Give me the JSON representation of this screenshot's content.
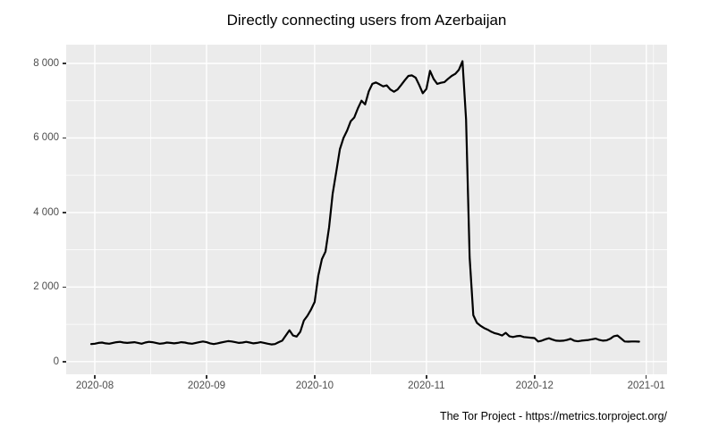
{
  "title": "Directly connecting users from Azerbaijan",
  "footer": "The Tor Project - https://metrics.torproject.org/",
  "colors": {
    "background": "#FFFFFF",
    "panel_background": "#EBEBEB",
    "gridline": "#FFFFFF",
    "data_line": "#000000",
    "tick_label": "#4D4D4D",
    "tick_mark": "#333333",
    "title_text": "#000000"
  },
  "chart_data": {
    "type": "line",
    "title": "Directly connecting users from Azerbaijan",
    "xlabel": "",
    "ylabel": "",
    "legend_position": "none",
    "grid": true,
    "ylim": [
      0,
      8500
    ],
    "y_tick_values": [
      0,
      2000,
      4000,
      6000,
      8000
    ],
    "y_tick_labels": [
      "0",
      "2 000",
      "4 000",
      "6 000",
      "8 000"
    ],
    "y_minor_values": [
      1000,
      3000,
      5000,
      7000
    ],
    "x_tick_labels": [
      "2020-08",
      "2020-09",
      "2020-10",
      "2020-11",
      "2020-12",
      "2021-01"
    ],
    "x_tick_day_offsets": [
      0,
      31,
      61,
      92,
      122,
      153
    ],
    "x_minor_day_offsets": [
      15.5,
      46,
      76.5,
      107,
      137.5,
      155
    ],
    "x_start_date": "2020-07-31",
    "x_unit": "day",
    "series": [
      {
        "name": "directly-connecting-users",
        "values": [
          470,
          480,
          500,
          510,
          490,
          480,
          500,
          520,
          530,
          510,
          500,
          510,
          520,
          500,
          480,
          510,
          530,
          520,
          500,
          480,
          490,
          510,
          500,
          490,
          500,
          520,
          510,
          490,
          480,
          500,
          520,
          540,
          520,
          490,
          470,
          490,
          510,
          530,
          550,
          540,
          520,
          500,
          510,
          530,
          510,
          490,
          500,
          520,
          500,
          480,
          460,
          470,
          520,
          560,
          700,
          840,
          700,
          670,
          800,
          1100,
          1230,
          1400,
          1600,
          2300,
          2750,
          2950,
          3600,
          4500,
          5100,
          5700,
          6000,
          6200,
          6450,
          6550,
          6800,
          7000,
          6900,
          7250,
          7450,
          7490,
          7440,
          7385,
          7410,
          7300,
          7240,
          7300,
          7420,
          7550,
          7665,
          7680,
          7620,
          7420,
          7200,
          7320,
          7800,
          7585,
          7450,
          7480,
          7500,
          7585,
          7665,
          7720,
          7825,
          8060,
          6500,
          2800,
          1245,
          1040,
          960,
          900,
          855,
          800,
          760,
          735,
          700,
          772,
          680,
          660,
          680,
          690,
          660,
          650,
          640,
          630,
          540,
          560,
          600,
          625,
          590,
          560,
          555,
          560,
          580,
          610,
          560,
          545,
          560,
          570,
          580,
          600,
          615,
          580,
          560,
          570,
          610,
          680,
          700,
          620,
          540,
          535,
          540,
          540,
          535
        ]
      }
    ]
  }
}
